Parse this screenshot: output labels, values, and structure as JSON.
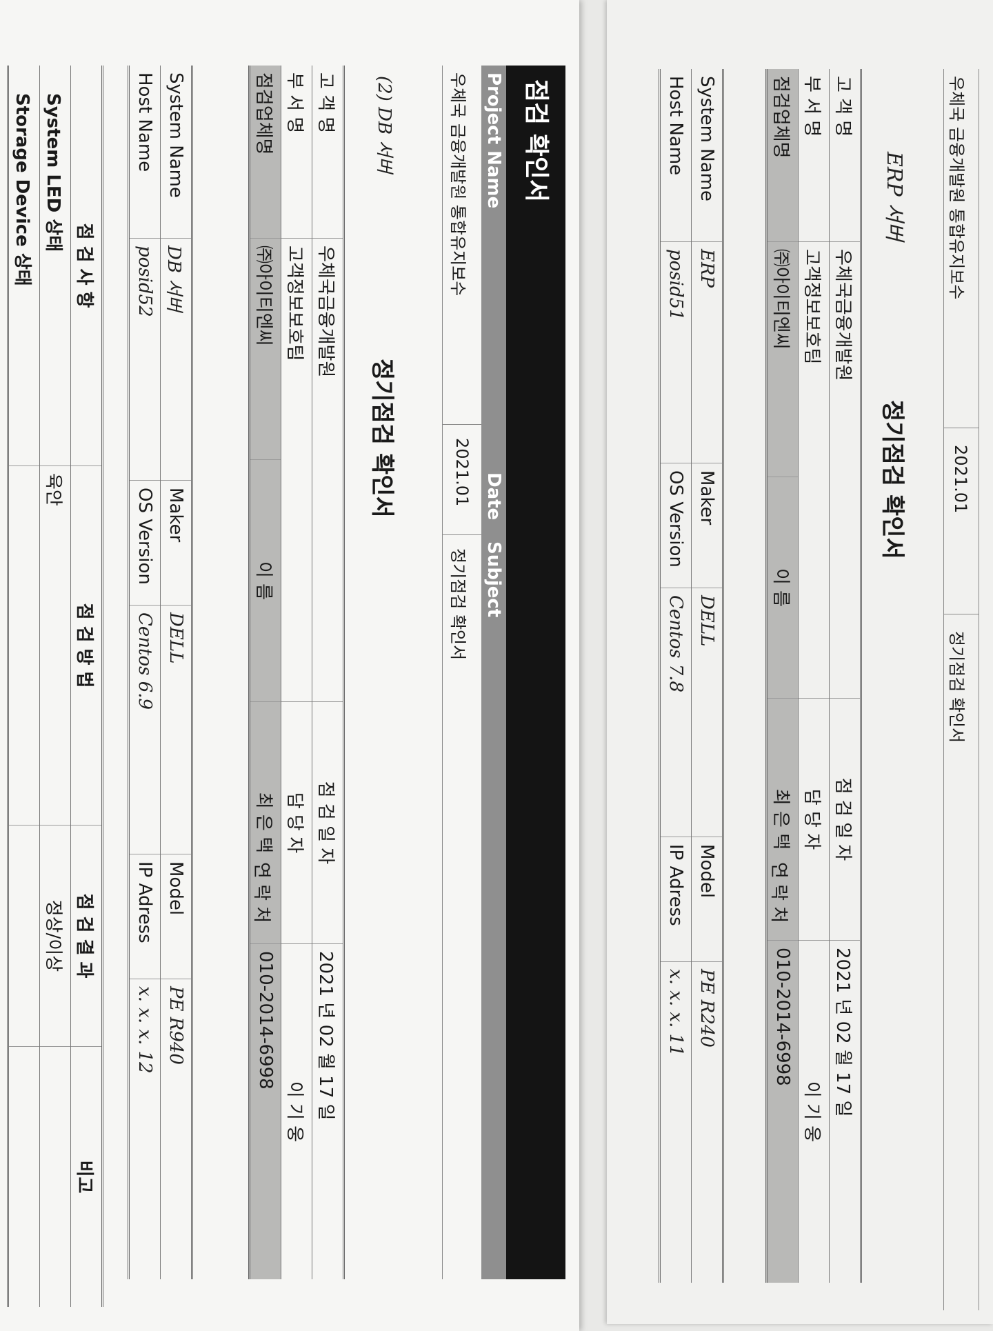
{
  "back_sheet": {
    "header": {
      "project": "우체국 금융개발원 통합유지보수",
      "date": "2021.01",
      "subject": "정기점검 확인서"
    },
    "server_label": "ERP 서버",
    "title": "정기점검 확인서",
    "info_rows": [
      {
        "label": "고 객 명",
        "value": "우체국금융개발원",
        "label2": "점 검 일 자",
        "value2": "2021 년   02 월   17 일"
      },
      {
        "label": "부 서 명",
        "value": "고객정보보호팀",
        "label2": "담 당 자",
        "value2": "이 기 웅"
      },
      {
        "label": "점검업체명",
        "value": "㈜아이티엔씨",
        "label_mid": "이  름",
        "value_mid": "최 은 택",
        "label2": "연  락  처",
        "value2": "010-2014-6998"
      }
    ],
    "system_rows": [
      {
        "label": "System Name",
        "value": "ERP",
        "label2": "Maker",
        "value2": "DELL",
        "label3": "Model",
        "value3": "PE  R240"
      },
      {
        "label": "Host Name",
        "value": "posid51",
        "label2": "OS Version",
        "value2": "Centos 7.8",
        "label3": "IP Adress",
        "value3": "x. x. x. 11"
      }
    ]
  },
  "front_sheet": {
    "banner": "점검 확인서",
    "columns": {
      "project": "Project Name",
      "date": "Date",
      "subject": "Subject"
    },
    "values": {
      "project": "우체국 금융개발원 통합유지보수",
      "date": "2021.01",
      "subject": "정기점검 확인서"
    },
    "server_label": "(2) DB 서버",
    "title": "정기점검 확인서",
    "info_rows": [
      {
        "label": "고 객 명",
        "value": "우체국금융개발원",
        "label2": "점 검 일 자",
        "value2": "2021 년   02 월   17 일"
      },
      {
        "label": "부 서 명",
        "value": "고객정보보호팀",
        "label2": "담 당 자",
        "value2": "이 기 웅"
      },
      {
        "label": "점검업체명",
        "value": "㈜아이티엔씨",
        "label_mid": "이  름",
        "value_mid": "최 은 택",
        "label2": "연  락  처",
        "value2": "010-2014-6998"
      }
    ],
    "system_rows": [
      {
        "label": "System Name",
        "value": "DB 서버",
        "label2": "Maker",
        "value2": "DELL",
        "label3": "Model",
        "value3": "PE  R940"
      },
      {
        "label": "Host Name",
        "value": "posid52",
        "label2": "OS Version",
        "value2": "Centos 6.9",
        "label3": "IP Adress",
        "value3": "x. x. x. 12"
      }
    ],
    "check_table": {
      "headers": [
        "점 검 사 항",
        "점 검 방 법",
        "점 검 결 과",
        "비고"
      ],
      "rows": [
        {
          "item": "System LED 상태",
          "method": "육안",
          "result": "정상/이상"
        },
        {
          "item": "Storage Device 상태"
        }
      ]
    }
  }
}
